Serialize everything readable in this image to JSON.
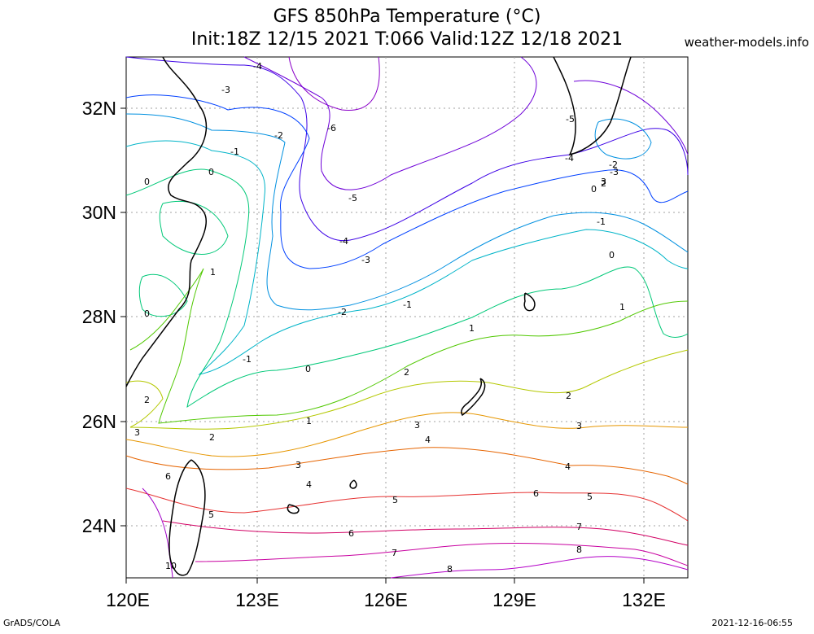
{
  "header": {
    "title_line1": "GFS 850hPa Temperature (°C)",
    "title_line2": "Init:18Z 12/15 2021 T:066 Valid:12Z 12/18 2021",
    "site": "weather-models.info"
  },
  "footer": {
    "left": "GrADS/COLA",
    "right": "2021-12-16-06:55"
  },
  "map": {
    "lat_labels": [
      "32N",
      "30N",
      "28N",
      "26N",
      "24N"
    ],
    "lon_labels": [
      "120E",
      "123E",
      "126E",
      "129E",
      "132E"
    ],
    "lat_range": [
      23,
      33
    ],
    "lon_range": [
      120,
      133
    ],
    "contour_labels": [
      "-4",
      "-3",
      "-2",
      "-1",
      "0",
      "-6",
      "-5",
      "-4",
      "-3",
      "-2",
      "-1",
      "0",
      "1",
      "2",
      "3",
      "4",
      "5",
      "6",
      "7",
      "8",
      "-5",
      "-4",
      "-3",
      "-2",
      "-1",
      "0",
      "1",
      "2",
      "3",
      "4",
      "5",
      "6",
      "7",
      "8",
      "0",
      "1",
      "0",
      "2",
      "3",
      "2",
      "3",
      "4",
      "5",
      "6",
      "10",
      "-1",
      "0",
      "1",
      "2",
      "3"
    ],
    "contour_colors": {
      "c_m6": "#8a00c8",
      "c_m5": "#6e00d8",
      "c_m4": "#3c00e6",
      "c_m3": "#0040ff",
      "c_m2": "#0090e0",
      "c_m1": "#00b4c8",
      "c_0": "#00c878",
      "c_1": "#50c800",
      "c_2": "#b4c800",
      "c_3": "#e69600",
      "c_4": "#e66400",
      "c_5": "#e63232",
      "c_6": "#d20064",
      "c_7": "#c800a0",
      "c_8": "#b400c8",
      "c_10": "#a000c8"
    },
    "grid_color": "#a0a0a0"
  }
}
